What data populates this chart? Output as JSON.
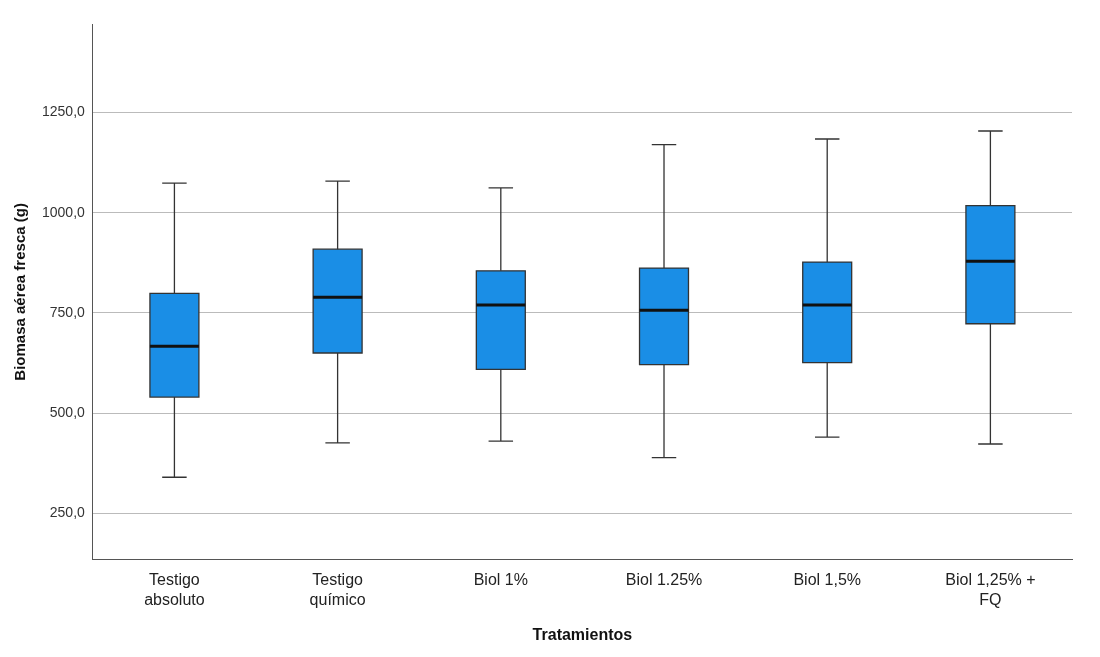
{
  "chart_data": {
    "type": "box",
    "xlabel": "Tratamientos",
    "ylabel": "Biomasa aérea fresca (g)",
    "categories": [
      "Testigo absoluto",
      "Testigo químico",
      "Biol 1%",
      "Biol 1.25%",
      "Biol 1,5%",
      "Biol 1,25% + FQ"
    ],
    "color": "#1a8ee6",
    "boxes": [
      {
        "low": 340,
        "q1": 540,
        "median": 667,
        "q3": 799,
        "high": 1074
      },
      {
        "low": 426,
        "q1": 650,
        "median": 789,
        "q3": 909,
        "high": 1079
      },
      {
        "low": 430,
        "q1": 609,
        "median": 770,
        "q3": 855,
        "high": 1062
      },
      {
        "low": 389,
        "q1": 621,
        "median": 757,
        "q3": 862,
        "high": 1170
      },
      {
        "low": 440,
        "q1": 626,
        "median": 770,
        "q3": 877,
        "high": 1184
      },
      {
        "low": 423,
        "q1": 723,
        "median": 879,
        "q3": 1018,
        "high": 1204
      }
    ],
    "ylim": [
      135,
      1470
    ],
    "yticks": [
      {
        "value": 250,
        "label": "250,0"
      },
      {
        "value": 500,
        "label": "500,0"
      },
      {
        "value": 750,
        "label": "750,0"
      },
      {
        "value": 1000,
        "label": "1000,0"
      },
      {
        "value": 1250,
        "label": "1250,0"
      }
    ],
    "grid": "y",
    "legend": false
  }
}
